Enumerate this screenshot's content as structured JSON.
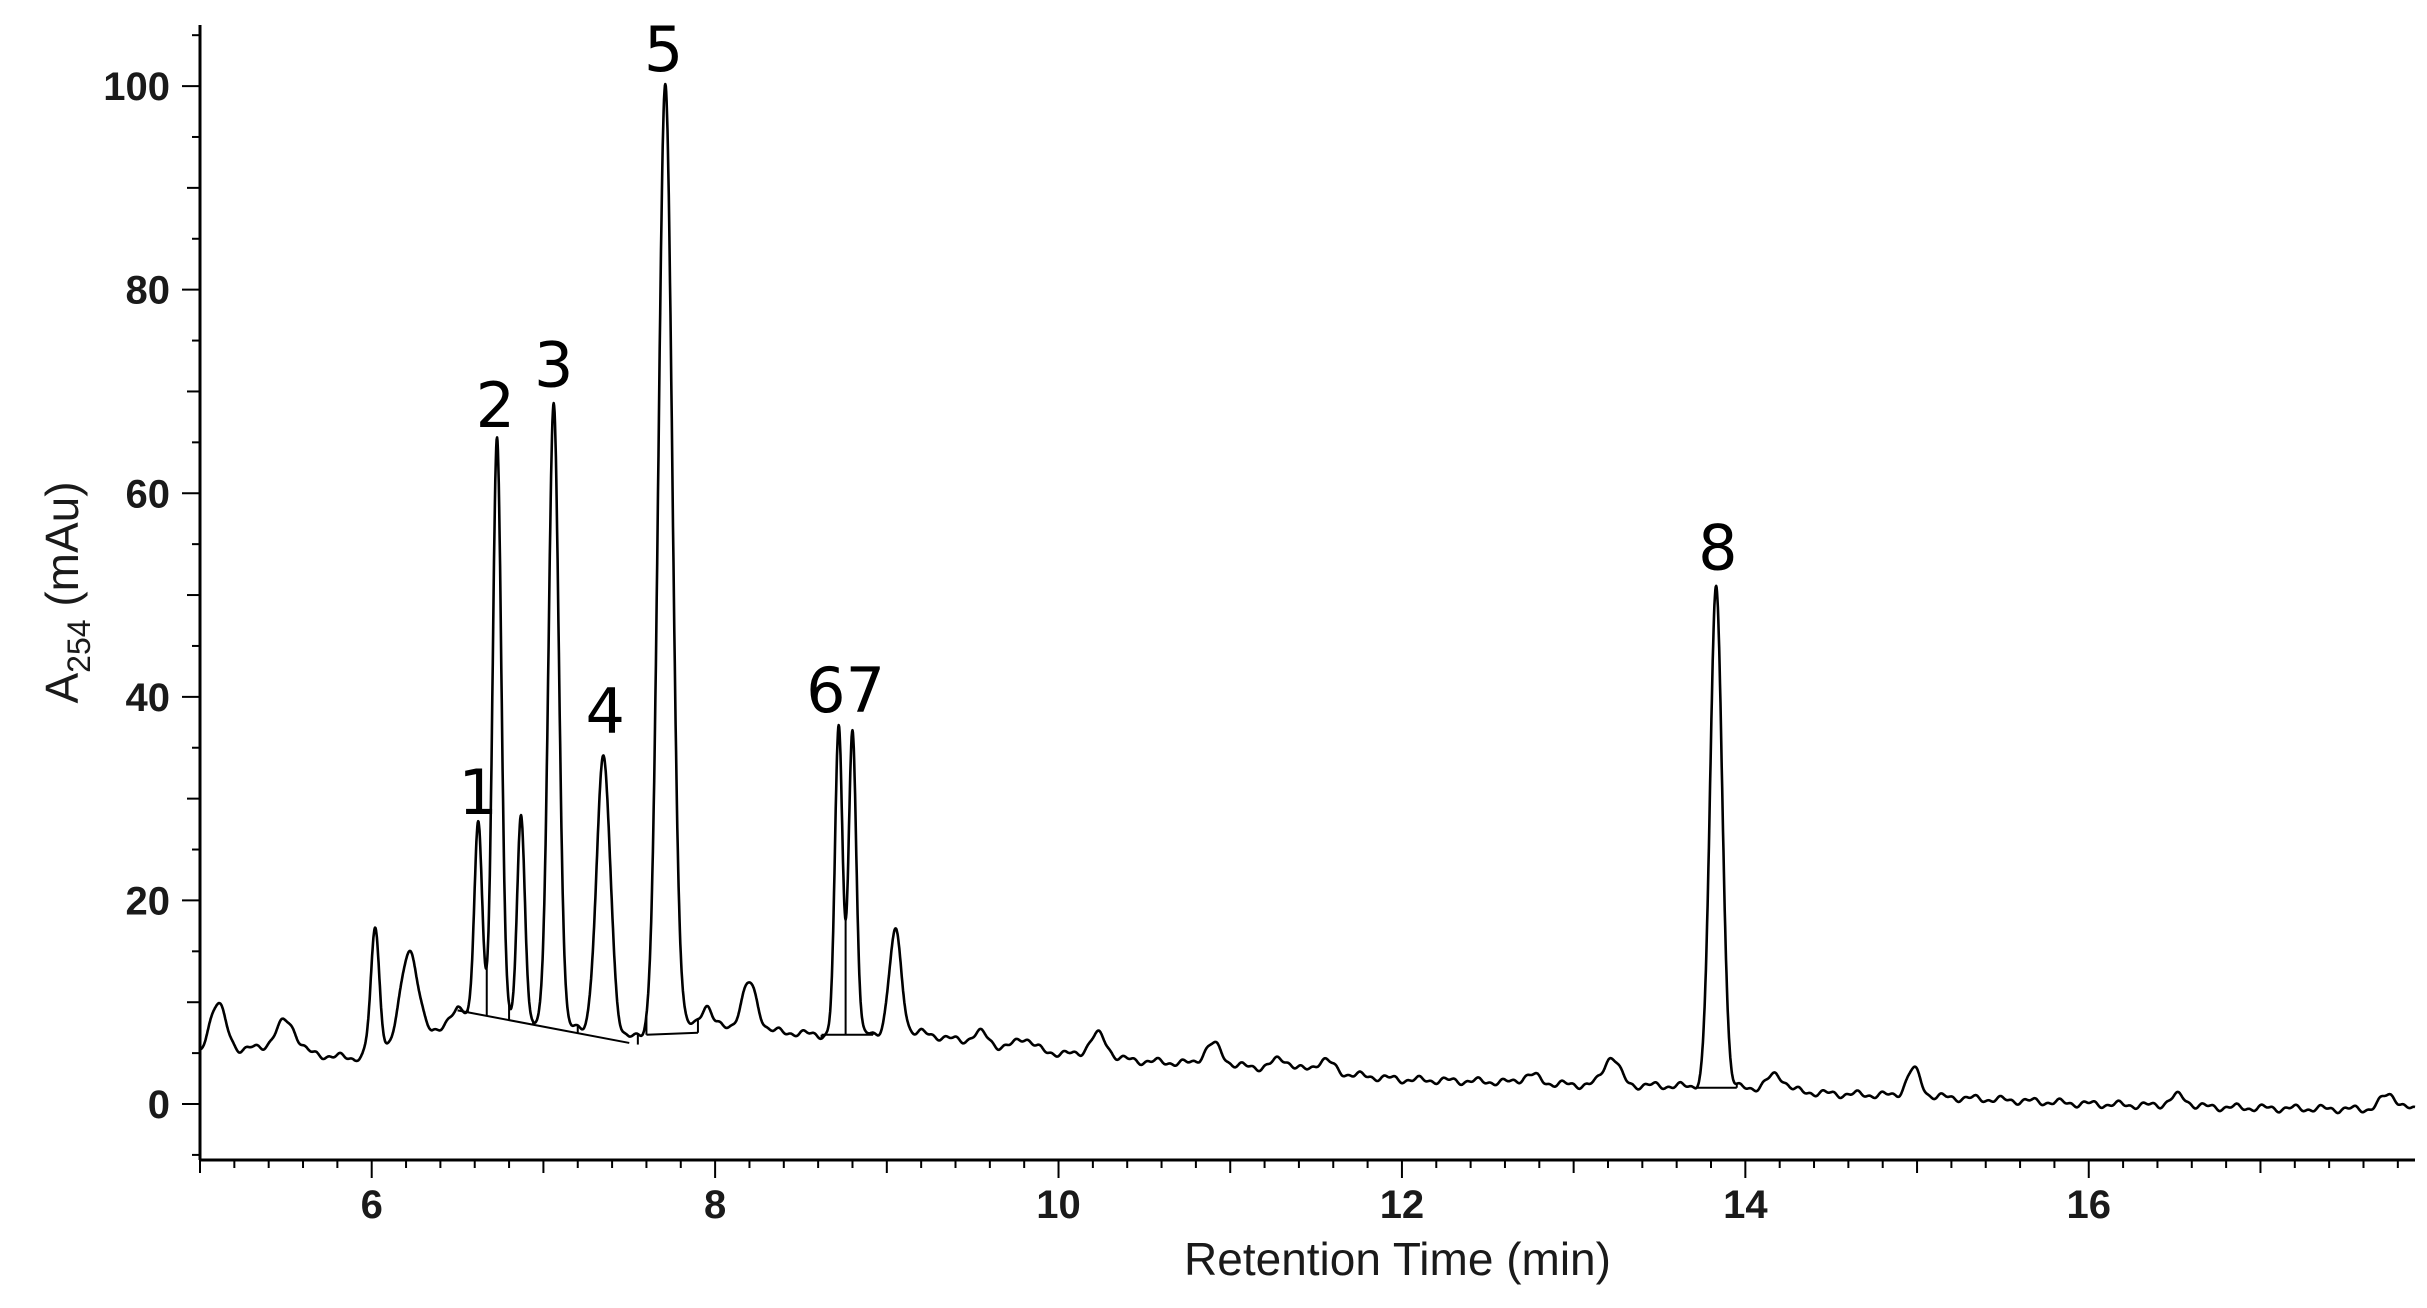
{
  "chart_data": {
    "type": "line",
    "title": "",
    "xlabel": "Retention Time (min)",
    "ylabel_main": "A",
    "ylabel_sub": "254",
    "ylabel_unit": " (mAu)",
    "xlim": [
      5.0,
      17.9
    ],
    "ylim": [
      -5.5,
      106
    ],
    "x_ticks": [
      6,
      8,
      10,
      12,
      14,
      16
    ],
    "y_ticks": [
      0,
      20,
      40,
      60,
      80,
      100
    ],
    "grid": false,
    "line_color": "#000000",
    "baseline": [
      [
        5.0,
        4.5
      ],
      [
        5.3,
        5.5
      ],
      [
        5.7,
        4.8
      ],
      [
        5.9,
        4.5
      ],
      [
        6.35,
        6.8
      ],
      [
        6.5,
        9.2
      ],
      [
        7.0,
        8.0
      ],
      [
        7.5,
        6.5
      ],
      [
        7.9,
        7.8
      ],
      [
        8.3,
        7.2
      ],
      [
        8.6,
        6.8
      ],
      [
        9.2,
        7.0
      ],
      [
        9.6,
        5.6
      ],
      [
        10.0,
        5.0
      ],
      [
        10.5,
        4.2
      ],
      [
        11.0,
        3.8
      ],
      [
        11.5,
        3.2
      ],
      [
        12.0,
        2.4
      ],
      [
        12.5,
        2.2
      ],
      [
        13.0,
        1.9
      ],
      [
        13.5,
        1.8
      ],
      [
        14.0,
        1.6
      ],
      [
        14.5,
        1.0
      ],
      [
        15.0,
        0.8
      ],
      [
        15.5,
        0.4
      ],
      [
        16.0,
        0.0
      ],
      [
        16.5,
        -0.2
      ],
      [
        17.0,
        -0.4
      ],
      [
        17.5,
        -0.5
      ],
      [
        17.9,
        -0.6
      ]
    ],
    "peaks": [
      {
        "rt": 5.1,
        "height": 5.0,
        "width": 0.05
      },
      {
        "rt": 5.5,
        "height": 3.0,
        "width": 0.06
      },
      {
        "rt": 6.02,
        "height": 12.0,
        "width": 0.025
      },
      {
        "rt": 6.22,
        "height": 9.0,
        "width": 0.05
      },
      {
        "rt": 6.62,
        "height": 19.0,
        "width": 0.022
      },
      {
        "rt": 6.73,
        "height": 57.0,
        "width": 0.025
      },
      {
        "rt": 6.87,
        "height": 20.0,
        "width": 0.022
      },
      {
        "rt": 7.06,
        "height": 61.0,
        "width": 0.03
      },
      {
        "rt": 7.35,
        "height": 27.0,
        "width": 0.04
      },
      {
        "rt": 7.71,
        "height": 93.0,
        "width": 0.04
      },
      {
        "rt": 7.95,
        "height": 2.0,
        "width": 0.03
      },
      {
        "rt": 8.2,
        "height": 4.5,
        "width": 0.045
      },
      {
        "rt": 8.72,
        "height": 30.0,
        "width": 0.022
      },
      {
        "rt": 8.8,
        "height": 30.0,
        "width": 0.022
      },
      {
        "rt": 9.05,
        "height": 10.0,
        "width": 0.035
      },
      {
        "rt": 9.55,
        "height": 1.2,
        "width": 0.05
      },
      {
        "rt": 9.8,
        "height": 1.2,
        "width": 0.05
      },
      {
        "rt": 10.23,
        "height": 2.2,
        "width": 0.05
      },
      {
        "rt": 10.9,
        "height": 2.0,
        "width": 0.05
      },
      {
        "rt": 11.3,
        "height": 1.0,
        "width": 0.05
      },
      {
        "rt": 11.55,
        "height": 1.2,
        "width": 0.05
      },
      {
        "rt": 12.75,
        "height": 0.8,
        "width": 0.05
      },
      {
        "rt": 13.22,
        "height": 2.8,
        "width": 0.045
      },
      {
        "rt": 13.83,
        "height": 49.0,
        "width": 0.035
      },
      {
        "rt": 14.18,
        "height": 1.5,
        "width": 0.05
      },
      {
        "rt": 14.98,
        "height": 2.6,
        "width": 0.04
      },
      {
        "rt": 16.52,
        "height": 1.0,
        "width": 0.05
      },
      {
        "rt": 17.75,
        "height": 1.5,
        "width": 0.05
      }
    ],
    "integration_drops": [
      {
        "from": [
          6.5,
          9.2
        ],
        "to": [
          7.5,
          6.0
        ],
        "drops": [
          6.56,
          6.67,
          6.8,
          6.94,
          7.2,
          7.55
        ]
      },
      {
        "from": [
          7.6,
          6.8
        ],
        "to": [
          7.9,
          7.0
        ],
        "drops": [
          7.6,
          7.9
        ]
      },
      {
        "from": [
          8.62,
          6.8
        ],
        "to": [
          8.92,
          6.8
        ],
        "drops": [
          8.62,
          8.76,
          8.92
        ]
      },
      {
        "from": [
          13.72,
          1.6
        ],
        "to": [
          13.95,
          1.6
        ],
        "drops": [
          13.72,
          13.95
        ]
      }
    ],
    "annotations": [
      {
        "text": "1",
        "x": 6.62,
        "y": 28.5
      },
      {
        "text": "2",
        "x": 6.72,
        "y": 66.5
      },
      {
        "text": "3",
        "x": 7.06,
        "y": 70.5
      },
      {
        "text": "4",
        "x": 7.36,
        "y": 36.5
      },
      {
        "text": "5",
        "x": 7.7,
        "y": 101.5
      },
      {
        "text": "67",
        "x": 8.76,
        "y": 38.5
      },
      {
        "text": "8",
        "x": 13.84,
        "y": 52.5
      }
    ]
  }
}
